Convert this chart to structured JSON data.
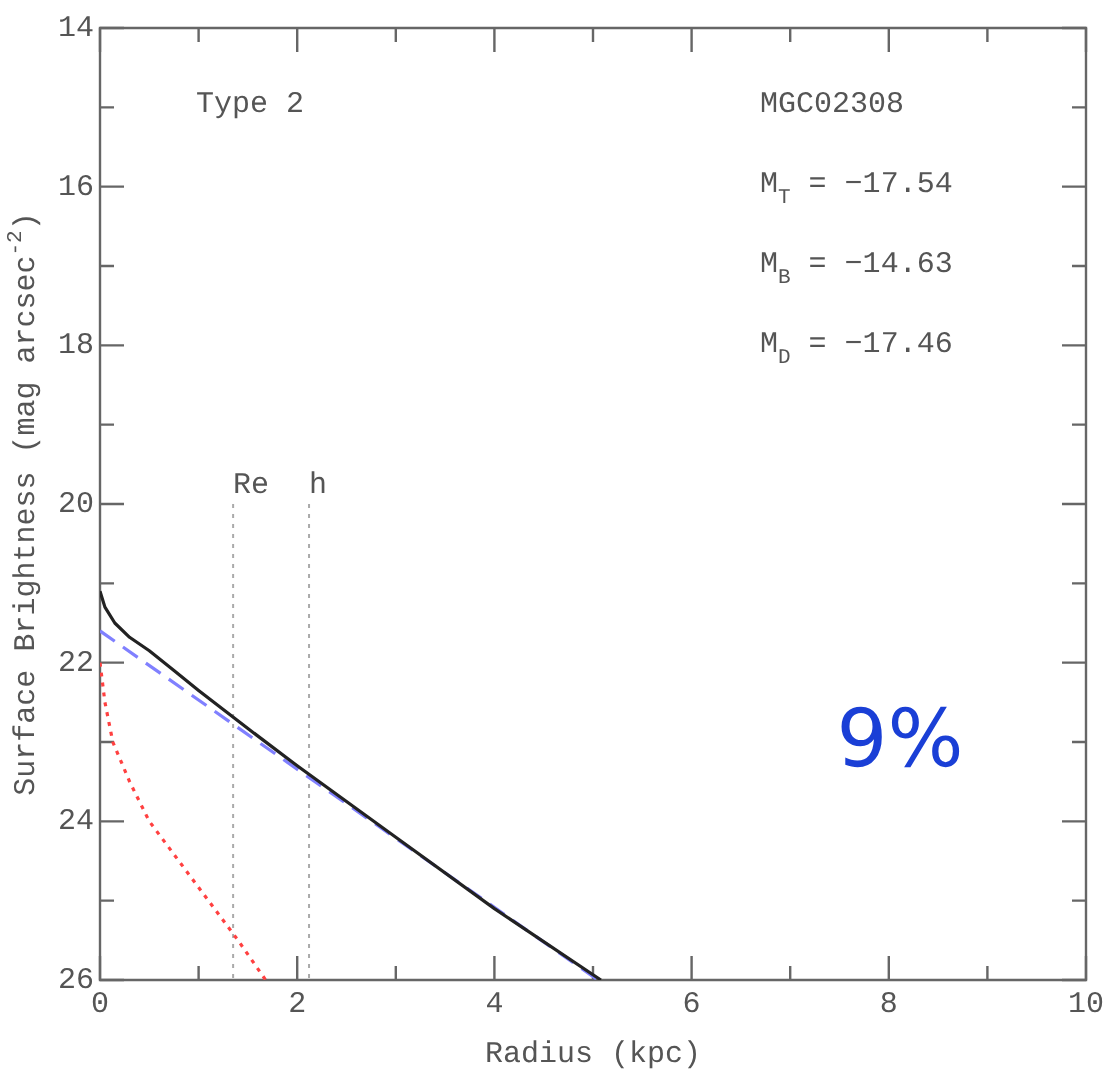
{
  "chart_data": {
    "type": "line",
    "xlabel": "Radius (kpc)",
    "ylabel": "Surface Brightness (mag arcsec$^{-2}$)",
    "xlim": [
      0,
      10
    ],
    "xticks": [
      0,
      2,
      4,
      6,
      8,
      10
    ],
    "ylim": [
      26,
      14
    ],
    "yticks": [
      14,
      16,
      18,
      20,
      22,
      24,
      26
    ],
    "grid": false,
    "legend": false,
    "marker": "none",
    "series": [
      {
        "color": "#222222",
        "line_style": "solid",
        "x": [
          0,
          0.05,
          0.15,
          0.3,
          0.5,
          0.75,
          1,
          1.5,
          2,
          3,
          4,
          5.08
        ],
        "values": [
          21.1,
          21.3,
          21.5,
          21.68,
          21.85,
          22.1,
          22.35,
          22.83,
          23.3,
          24.2,
          25.1,
          26
        ]
      },
      {
        "color": "#8080ff",
        "line_style": "dashed",
        "x": [
          0,
          5.05
        ],
        "values": [
          21.6,
          26
        ]
      },
      {
        "color": "#ff4040",
        "line_style": "dotted",
        "x": [
          0,
          0.05,
          0.13,
          0.3,
          0.5,
          0.8,
          1.1,
          1.4,
          1.68
        ],
        "values": [
          22,
          22.5,
          23,
          23.5,
          24,
          24.5,
          25,
          25.5,
          26
        ]
      }
    ],
    "ref_lines": [
      {
        "axis": "x",
        "value": 1.35,
        "label": "Re",
        "color": "#aaaaaa",
        "line_style": "dotted"
      },
      {
        "axis": "x",
        "value": 2.12,
        "label": "h",
        "color": "#aaaaaa",
        "line_style": "dotted"
      }
    ],
    "annotations": [
      "Type 2",
      "MGC02308",
      "M$_{T}$ = −17.54",
      "M$_{B}$ = −14.63",
      "M$_{D}$ = −17.46",
      "9%"
    ]
  }
}
